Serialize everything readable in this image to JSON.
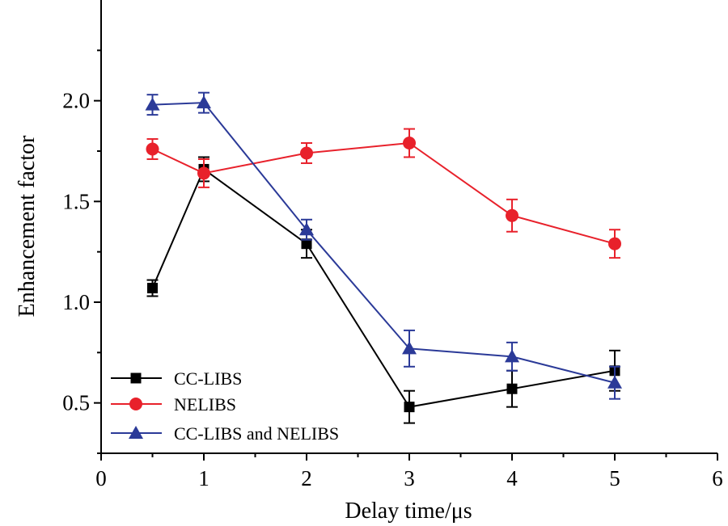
{
  "chart_data": {
    "type": "line",
    "title": "",
    "xlabel": "Delay time/μs",
    "ylabel": "Enhancement factor",
    "xlim": [
      0,
      6
    ],
    "ylim": [
      0.25,
      2.5
    ],
    "xticks": [
      "0",
      "1",
      "2",
      "3",
      "4",
      "5",
      "6"
    ],
    "yticks": [
      "0.5",
      "1.0",
      "1.5",
      "2.0"
    ],
    "grid": false,
    "legend_position": "bottom-left",
    "x": [
      0.5,
      1,
      2,
      3,
      4,
      5
    ],
    "series": [
      {
        "name": "CC-LIBS",
        "color": "#000000",
        "marker": "square",
        "values": [
          1.07,
          1.66,
          1.29,
          0.48,
          0.57,
          0.66
        ],
        "errors": [
          0.04,
          0.06,
          0.07,
          0.08,
          0.09,
          0.1
        ]
      },
      {
        "name": "NELIBS",
        "color": "#e8212b",
        "marker": "circle",
        "values": [
          1.76,
          1.64,
          1.74,
          1.79,
          1.43,
          1.29
        ],
        "errors": [
          0.05,
          0.07,
          0.05,
          0.07,
          0.08,
          0.07
        ]
      },
      {
        "name": "CC-LIBS and NELIBS",
        "color": "#2b3a98",
        "marker": "triangle",
        "values": [
          1.98,
          1.99,
          1.36,
          0.77,
          0.73,
          0.6
        ],
        "errors": [
          0.05,
          0.05,
          0.05,
          0.09,
          0.07,
          0.08
        ]
      }
    ]
  }
}
